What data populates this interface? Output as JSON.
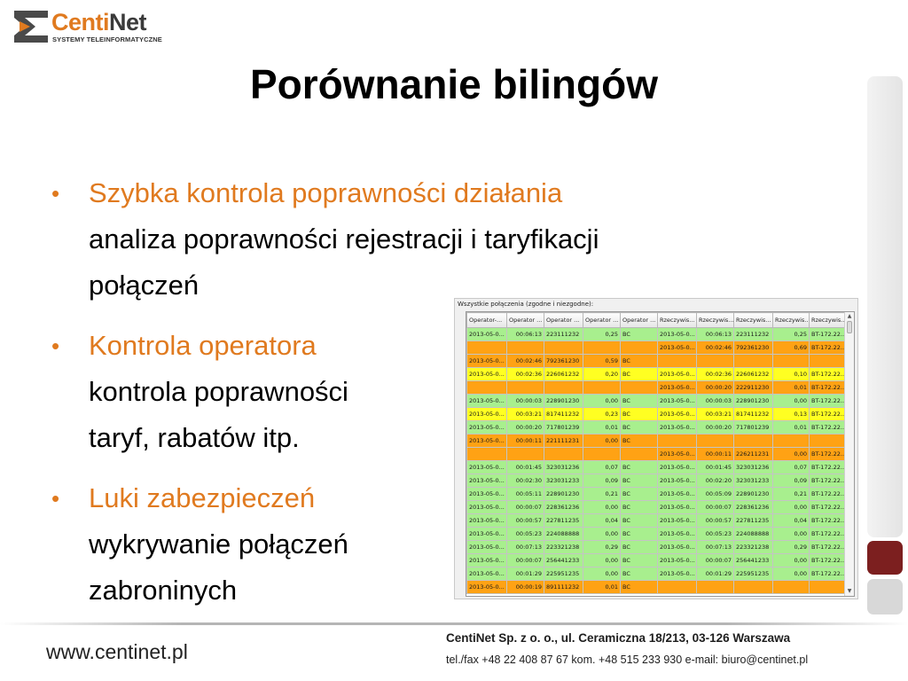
{
  "brand": {
    "name_part1": "Centi",
    "name_part2": "Net",
    "subtitle": "SYSTEMY TELEINFORMATYCZNE",
    "accent_color": "#e07a1f",
    "dark_red": "#7c1f1f"
  },
  "slide": {
    "title": "Porównanie bilingów",
    "bullets": [
      {
        "heading": "Szybka kontrola poprawności działania",
        "lines": [
          "analiza poprawności rejestracji i taryfikacji",
          "połączeń"
        ]
      },
      {
        "heading": "Kontrola operatora",
        "lines": [
          "kontrola poprawności",
          "taryf, rabatów itp."
        ]
      },
      {
        "heading": "Luki zabezpieczeń",
        "lines": [
          "wykrywanie połączeń",
          "zabroninych"
        ]
      }
    ]
  },
  "grid": {
    "caption": "Wszystkie połączenia (zgodne i niezgodne):",
    "columns": [
      "Operator-...",
      "Operator ...",
      "Operator ...",
      "Operator ...",
      "Operator ...",
      "Rzeczywis...",
      "Rzeczywis...",
      "Rzeczywis...",
      "Rzeczywis...",
      "Rzeczywis..."
    ],
    "row_colors": {
      "green": "#a8ef8e",
      "yellow": "#ffff22",
      "orange": "#ffa214"
    },
    "rows": [
      {
        "status": "green",
        "cells": [
          "2013-05-0...",
          "00:06:13",
          "223111232",
          "0,25",
          "BC",
          "2013-05-0...",
          "00:06:13",
          "223111232",
          "0,25",
          "BT-172.22..."
        ]
      },
      {
        "status": "orange",
        "cells": [
          "",
          "",
          "",
          "",
          "",
          "2013-05-0...",
          "00:02:46",
          "792361230",
          "0,69",
          "BT-172.22..."
        ]
      },
      {
        "status": "orange",
        "cells": [
          "2013-05-0...",
          "00:02:46",
          "792361230",
          "0,59",
          "BC",
          "",
          "",
          "",
          "",
          ""
        ]
      },
      {
        "status": "yellow",
        "cells": [
          "2013-05-0...",
          "00:02:36",
          "226061232",
          "0,20",
          "BC",
          "2013-05-0...",
          "00:02:36",
          "226061232",
          "0,10",
          "BT-172.22..."
        ]
      },
      {
        "status": "orange",
        "cells": [
          "",
          "",
          "",
          "",
          "",
          "2013-05-0...",
          "00:00:20",
          "222911230",
          "0,01",
          "BT-172.22..."
        ]
      },
      {
        "status": "green",
        "cells": [
          "2013-05-0...",
          "00:00:03",
          "228901230",
          "0,00",
          "BC",
          "2013-05-0...",
          "00:00:03",
          "228901230",
          "0,00",
          "BT-172.22..."
        ]
      },
      {
        "status": "yellow",
        "cells": [
          "2013-05-0...",
          "00:03:21",
          "817411232",
          "0,23",
          "BC",
          "2013-05-0...",
          "00:03:21",
          "817411232",
          "0,13",
          "BT-172.22..."
        ]
      },
      {
        "status": "green",
        "cells": [
          "2013-05-0...",
          "00:00:20",
          "717801239",
          "0,01",
          "BC",
          "2013-05-0...",
          "00:00:20",
          "717801239",
          "0,01",
          "BT-172.22..."
        ]
      },
      {
        "status": "orange",
        "cells": [
          "2013-05-0...",
          "00:00:11",
          "221111231",
          "0,00",
          "BC",
          "",
          "",
          "",
          "",
          ""
        ]
      },
      {
        "status": "orange",
        "cells": [
          "",
          "",
          "",
          "",
          "",
          "2013-05-0...",
          "00:00:11",
          "226211231",
          "0,00",
          "BT-172.22..."
        ]
      },
      {
        "status": "green",
        "cells": [
          "2013-05-0...",
          "00:01:45",
          "323031236",
          "0,07",
          "BC",
          "2013-05-0...",
          "00:01:45",
          "323031236",
          "0,07",
          "BT-172.22..."
        ]
      },
      {
        "status": "green",
        "cells": [
          "2013-05-0...",
          "00:02:30",
          "323031233",
          "0,09",
          "BC",
          "2013-05-0...",
          "00:02:20",
          "323031233",
          "0,09",
          "BT-172.22..."
        ]
      },
      {
        "status": "green",
        "cells": [
          "2013-05-0...",
          "00:05:11",
          "228901230",
          "0,21",
          "BC",
          "2013-05-0...",
          "00:05:09",
          "228901230",
          "0,21",
          "BT-172.22..."
        ]
      },
      {
        "status": "green",
        "cells": [
          "2013-05-0...",
          "00:00:07",
          "228361236",
          "0,00",
          "BC",
          "2013-05-0...",
          "00:00:07",
          "228361236",
          "0,00",
          "BT-172.22..."
        ]
      },
      {
        "status": "green",
        "cells": [
          "2013-05-0...",
          "00:00:57",
          "227811235",
          "0,04",
          "BC",
          "2013-05-0...",
          "00:00:57",
          "227811235",
          "0,04",
          "BT-172.22..."
        ]
      },
      {
        "status": "green",
        "cells": [
          "2013-05-0...",
          "00:05:23",
          "224088888",
          "0,00",
          "BC",
          "2013-05-0...",
          "00:05:23",
          "224088888",
          "0,00",
          "BT-172.22..."
        ]
      },
      {
        "status": "green",
        "cells": [
          "2013-05-0...",
          "00:07:13",
          "223321238",
          "0,29",
          "BC",
          "2013-05-0...",
          "00:07:13",
          "223321238",
          "0,29",
          "BT-172.22..."
        ]
      },
      {
        "status": "green",
        "cells": [
          "2013-05-0...",
          "00:00:07",
          "256441233",
          "0,00",
          "BC",
          "2013-05-0...",
          "00:00:07",
          "256441233",
          "0,00",
          "BT-172.22..."
        ]
      },
      {
        "status": "green",
        "cells": [
          "2013-05-0...",
          "00:01:29",
          "225951235",
          "0,00",
          "BC",
          "2013-05-0...",
          "00:01:29",
          "225951235",
          "0,00",
          "BT-172.22..."
        ]
      },
      {
        "status": "orange",
        "cells": [
          "2013-05-0...",
          "00:00:19",
          "891111232",
          "0,01",
          "BC",
          "",
          "",
          "",
          "",
          ""
        ]
      }
    ]
  },
  "footer": {
    "url": "www.centinet.pl",
    "company": "CentiNet Sp. z o. o., ul. Ceramiczna 18/213, 03-126 Warszawa",
    "contact": "tel./fax +48 22 408 87 67 kom. +48 515 233 930 e-mail: biuro@centinet.pl"
  }
}
